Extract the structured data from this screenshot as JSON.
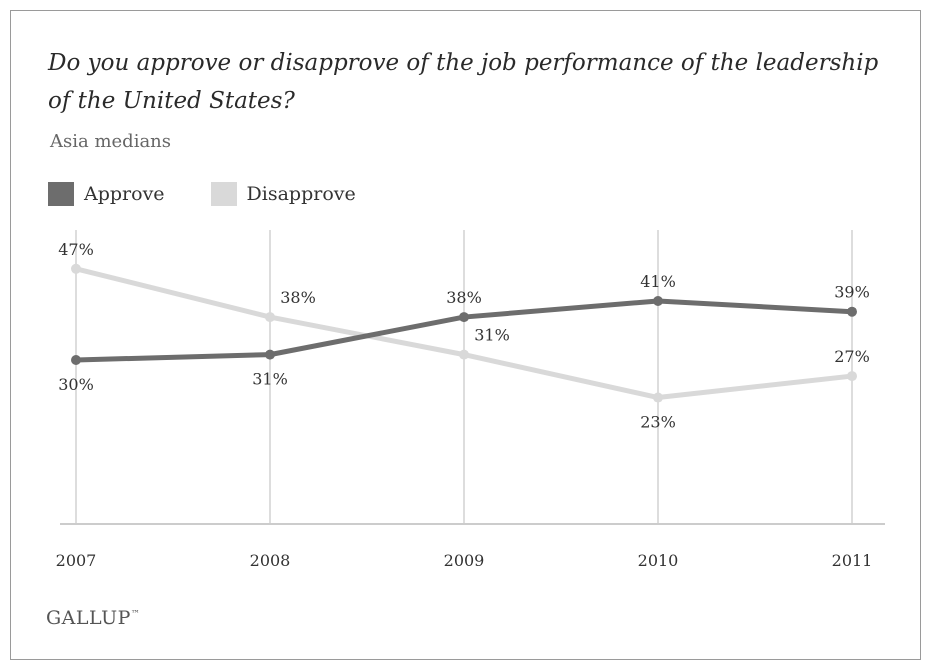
{
  "chart_data": {
    "type": "line",
    "title": "Do you approve or disapprove of the job performance of the leadership of the United States?",
    "subtitle": "Asia medians",
    "categories": [
      "2007",
      "2008",
      "2009",
      "2010",
      "2011"
    ],
    "ylim": [
      0,
      50
    ],
    "grid": "vertical",
    "legend": "top-left",
    "series": [
      {
        "name": "Approve",
        "color": "#6d6d6d",
        "values": [
          30,
          31,
          38,
          41,
          39
        ],
        "labels": [
          "30%",
          "31%",
          "38%",
          "41%",
          "39%"
        ],
        "label_side": [
          "below",
          "below",
          "above",
          "above",
          "above"
        ]
      },
      {
        "name": "Disapprove",
        "color": "#d9d9d9",
        "values": [
          47,
          38,
          31,
          23,
          27
        ],
        "labels": [
          "47%",
          "38%",
          "31%",
          "23%",
          "27%"
        ],
        "label_side": [
          "above",
          "above",
          "above",
          "below",
          "above"
        ]
      }
    ]
  },
  "source_logo": "GALLUP",
  "colors": {
    "axis": "#cccccc",
    "grid": "#dddddd",
    "text": "#333333"
  }
}
